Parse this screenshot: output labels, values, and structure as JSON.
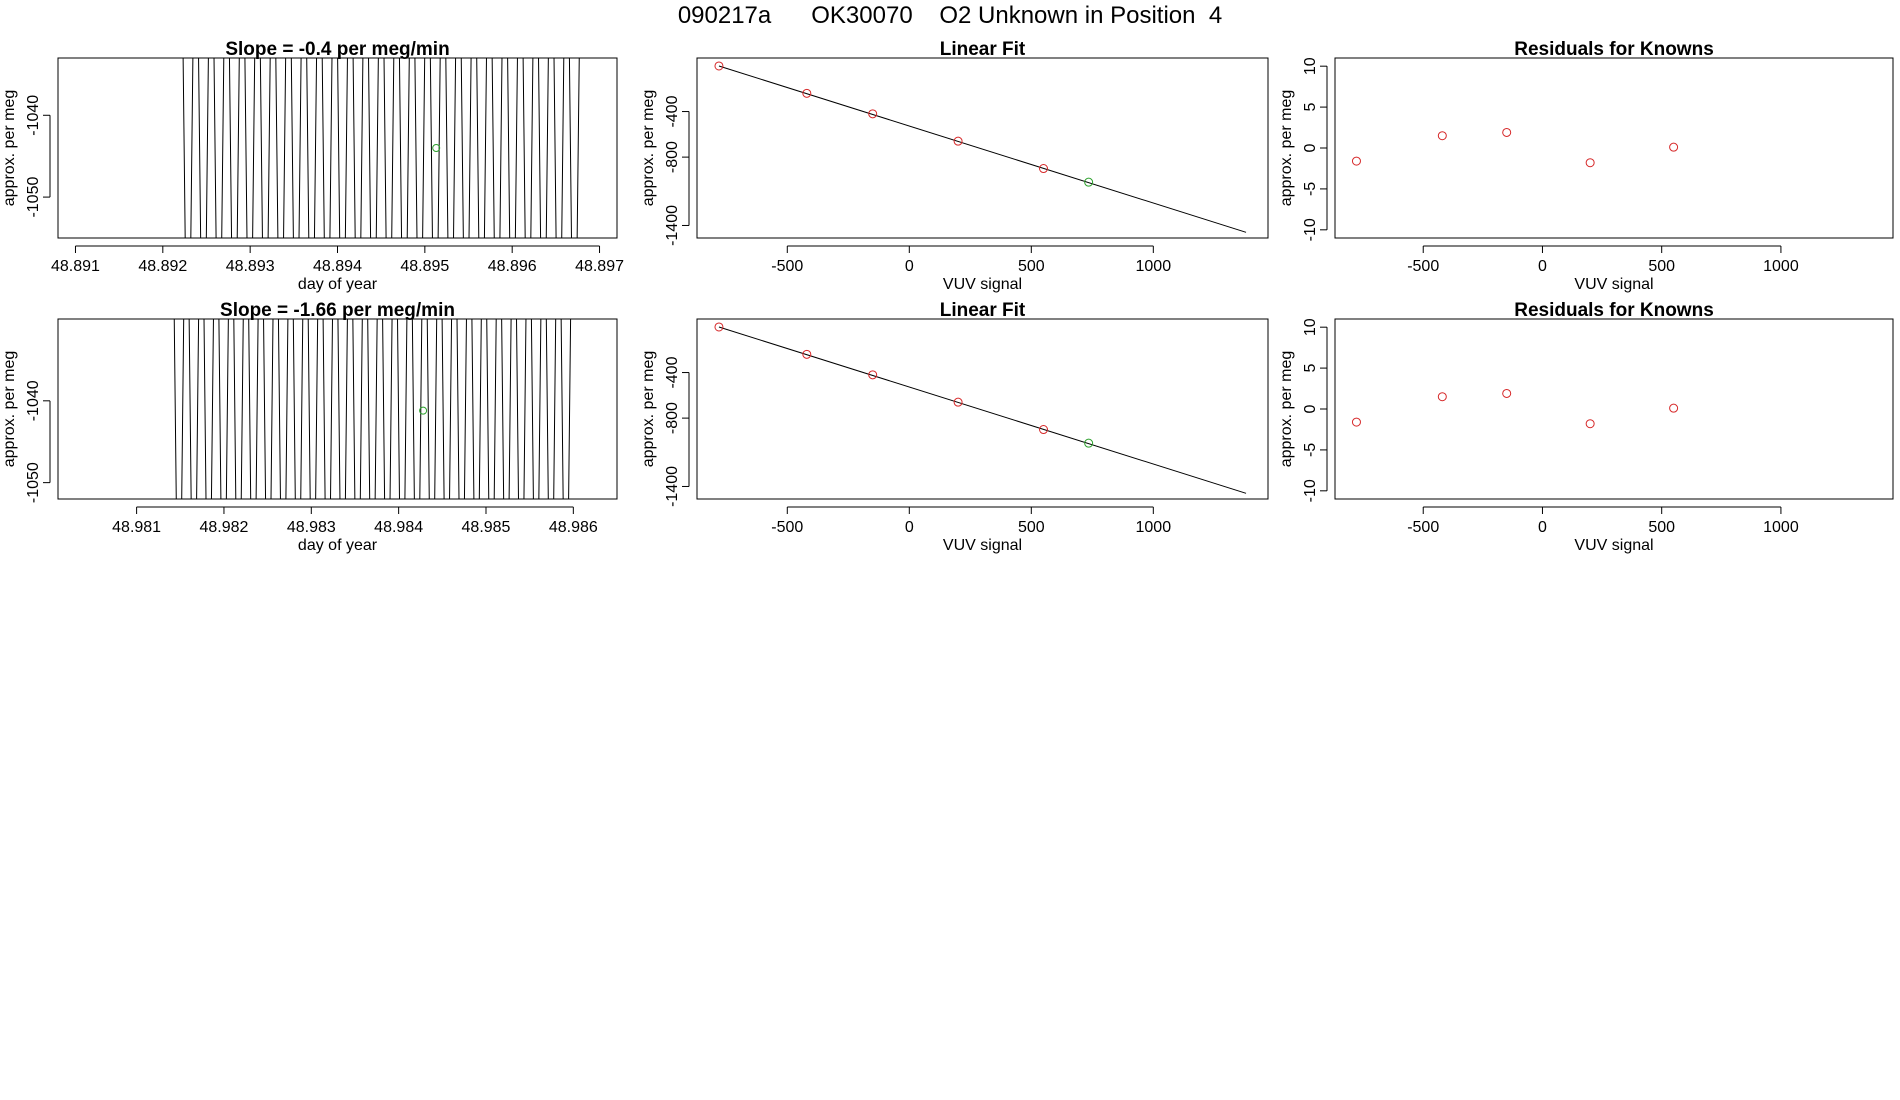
{
  "header": {
    "title": "090217a      OK30070    O2 Unknown in Position  4"
  },
  "colors": {
    "known": "#d62728",
    "unknown": "#2ca02c",
    "line": "#000000"
  },
  "chart_data": [
    {
      "id": "drift1",
      "type": "line",
      "title": "Slope =  -0.4  per meg/min",
      "xlabel": "day of year",
      "ylabel": "approx. per meg",
      "xlim": [
        48.8908,
        48.8972
      ],
      "ylim": [
        -1055,
        -1033
      ],
      "xticks": [
        "48.891",
        "48.892",
        "48.893",
        "48.894",
        "48.895",
        "48.896",
        "48.897"
      ],
      "yticks": [
        "-1040",
        "-1050"
      ],
      "trace_x_range": [
        48.8922,
        48.8968
      ],
      "crossings": 52,
      "unknown_point": {
        "x": 48.89513,
        "y": -1044
      }
    },
    {
      "id": "fit1",
      "type": "scatter",
      "title": "Linear Fit",
      "xlabel": "VUV signal",
      "ylabel": "approx. per meg",
      "xlim": [
        -870,
        1470
      ],
      "ylim": [
        -1510,
        70
      ],
      "xticks": [
        "-500",
        "0",
        "500",
        "1000"
      ],
      "yticks": [
        "-400",
        "-800",
        "-1400"
      ],
      "fit_line": {
        "x": [
          -780,
          1380
        ],
        "y": [
          0,
          -1460
        ]
      },
      "known_points": [
        {
          "x": -780,
          "y": 0
        },
        {
          "x": -420,
          "y": -240
        },
        {
          "x": -150,
          "y": -420
        },
        {
          "x": 200,
          "y": -660
        },
        {
          "x": 550,
          "y": -900
        }
      ],
      "unknown_points": [
        {
          "x": 735,
          "y": -1020
        }
      ]
    },
    {
      "id": "resid1",
      "type": "scatter",
      "title": "Residuals for Knowns",
      "xlabel": "VUV signal",
      "ylabel": "approx. per meg",
      "xlim": [
        -870,
        1470
      ],
      "ylim": [
        -11,
        11
      ],
      "xticks": [
        "-500",
        "0",
        "500",
        "1000"
      ],
      "yticks": [
        "10",
        "5",
        "0",
        "-5",
        "-10"
      ],
      "known_points": [
        {
          "x": -780,
          "y": -1.6
        },
        {
          "x": -420,
          "y": 1.5
        },
        {
          "x": -150,
          "y": 1.9
        },
        {
          "x": 200,
          "y": -1.8
        },
        {
          "x": 550,
          "y": 0.1
        }
      ]
    },
    {
      "id": "drift2",
      "type": "line",
      "title": "Slope =  -1.66  per meg/min",
      "xlabel": "day of year",
      "ylabel": "approx. per meg",
      "xlim": [
        48.9801,
        48.9865
      ],
      "ylim": [
        -1052,
        -1030
      ],
      "xticks": [
        "48.981",
        "48.982",
        "48.983",
        "48.984",
        "48.985",
        "48.986"
      ],
      "yticks": [
        "-1040",
        "-1050"
      ],
      "trace_x_range": [
        48.9814,
        48.986
      ],
      "crossings": 54,
      "unknown_point": {
        "x": 48.98428,
        "y": -1041.2
      }
    },
    {
      "id": "fit2",
      "type": "scatter",
      "title": "Linear Fit",
      "xlabel": "VUV signal",
      "ylabel": "approx. per meg",
      "xlim": [
        -870,
        1470
      ],
      "ylim": [
        -1510,
        70
      ],
      "xticks": [
        "-500",
        "0",
        "500",
        "1000"
      ],
      "yticks": [
        "-400",
        "-800",
        "-1400"
      ],
      "fit_line": {
        "x": [
          -780,
          1380
        ],
        "y": [
          0,
          -1460
        ]
      },
      "known_points": [
        {
          "x": -780,
          "y": 0
        },
        {
          "x": -420,
          "y": -240
        },
        {
          "x": -150,
          "y": -420
        },
        {
          "x": 200,
          "y": -660
        },
        {
          "x": 550,
          "y": -900
        }
      ],
      "unknown_points": [
        {
          "x": 735,
          "y": -1020
        }
      ]
    },
    {
      "id": "resid2",
      "type": "scatter",
      "title": "Residuals for Knowns",
      "xlabel": "VUV signal",
      "ylabel": "approx. per meg",
      "xlim": [
        -870,
        1470
      ],
      "ylim": [
        -11,
        11
      ],
      "xticks": [
        "-500",
        "0",
        "500",
        "1000"
      ],
      "yticks": [
        "10",
        "5",
        "0",
        "-5",
        "-10"
      ],
      "known_points": [
        {
          "x": -780,
          "y": -1.6
        },
        {
          "x": -420,
          "y": 1.5
        },
        {
          "x": -150,
          "y": 1.9
        },
        {
          "x": 200,
          "y": -1.8
        },
        {
          "x": 550,
          "y": 0.1
        }
      ]
    }
  ]
}
